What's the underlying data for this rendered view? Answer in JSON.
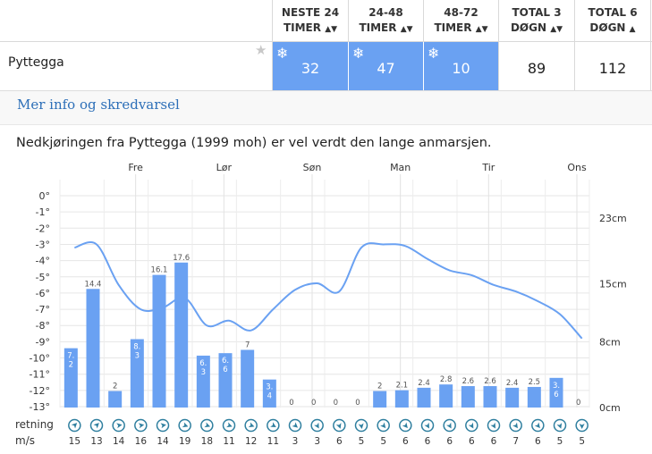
{
  "table": {
    "headers": [
      {
        "line1": "NESTE 24",
        "line2": "TIMER",
        "sort": "both"
      },
      {
        "line1": "24-48",
        "line2": "TIMER",
        "sort": "both"
      },
      {
        "line1": "48-72",
        "line2": "TIMER",
        "sort": "both"
      },
      {
        "line1": "TOTAL 3",
        "line2": "DØGN",
        "sort": "both"
      },
      {
        "line1": "TOTAL 6",
        "line2": "DØGN",
        "sort": "up"
      }
    ],
    "row": {
      "name": "Pyttegga",
      "values": [
        "32",
        "47",
        "10",
        "89",
        "112"
      ]
    }
  },
  "info_link": "Mer info og skredvarsel",
  "description": "Nedkjøringen fra Pyttegga (1999 moh) er vel verdt den lange anmarsjen.",
  "icons": {
    "favorite": "star-icon",
    "snow": "snowflake-icon",
    "wind": "wind-arrow-icon"
  },
  "colors": {
    "accent": "#6aa1f2",
    "bar": "#6aa1f2",
    "line": "#6aa1f2",
    "link": "#2d6fb8"
  },
  "chart_data": {
    "type": "bar",
    "days": [
      "Fre",
      "Lør",
      "Søn",
      "Man",
      "Tir",
      "Ons"
    ],
    "temp_ticks": [
      "0°",
      "-1°",
      "-2°",
      "-3°",
      "-4°",
      "-5°",
      "-6°",
      "-7°",
      "-8°",
      "-9°",
      "-10°",
      "-11°",
      "-12°",
      "-13°"
    ],
    "snow_ticks": [
      "23cm",
      "15cm",
      "8cm",
      "0cm"
    ],
    "snow_values": [
      7.2,
      14.4,
      2,
      8.3,
      16.1,
      17.6,
      6.3,
      6.6,
      7,
      3.4,
      0,
      0,
      0,
      0,
      2,
      2.1,
      2.4,
      2.8,
      2.6,
      2.6,
      2.4,
      2.5,
      3.6,
      0
    ],
    "snow_labels": [
      "7.2",
      "14.4",
      "2",
      "8.3",
      "16.1",
      "17.6",
      "6.3",
      "6.6",
      "7",
      "3.4",
      "0",
      "0",
      "0",
      "0",
      "2",
      "2.1",
      "2.4",
      "2.8",
      "2.6",
      "2.6",
      "2.4",
      "2.5",
      "3.6",
      "0"
    ],
    "temperature": [
      -3.2,
      -3.0,
      -5.5,
      -7.0,
      -6.9,
      -6.3,
      -8.0,
      -7.7,
      -8.3,
      -7.0,
      -5.8,
      -5.4,
      -5.9,
      -3.2,
      -3.0,
      -3.1,
      -3.9,
      -4.6,
      -4.9,
      -5.5,
      -5.9,
      -6.5,
      -7.3,
      -8.8
    ],
    "ylabel_rows": [
      "retning",
      "m/s"
    ],
    "wind_speed": [
      "15",
      "13",
      "14",
      "16",
      "14",
      "19",
      "18",
      "11",
      "12",
      "11",
      "3",
      "3",
      "6",
      "5",
      "5",
      "6",
      "6",
      "6",
      "6",
      "6",
      "7",
      "6",
      "5",
      "5"
    ],
    "wind_dir_deg": [
      45,
      45,
      80,
      80,
      80,
      110,
      110,
      110,
      110,
      120,
      130,
      150,
      160,
      170,
      140,
      140,
      150,
      150,
      150,
      150,
      145,
      140,
      160,
      180
    ],
    "temp_range": [
      -13,
      0
    ],
    "snow_range_cm": [
      0,
      23
    ]
  }
}
